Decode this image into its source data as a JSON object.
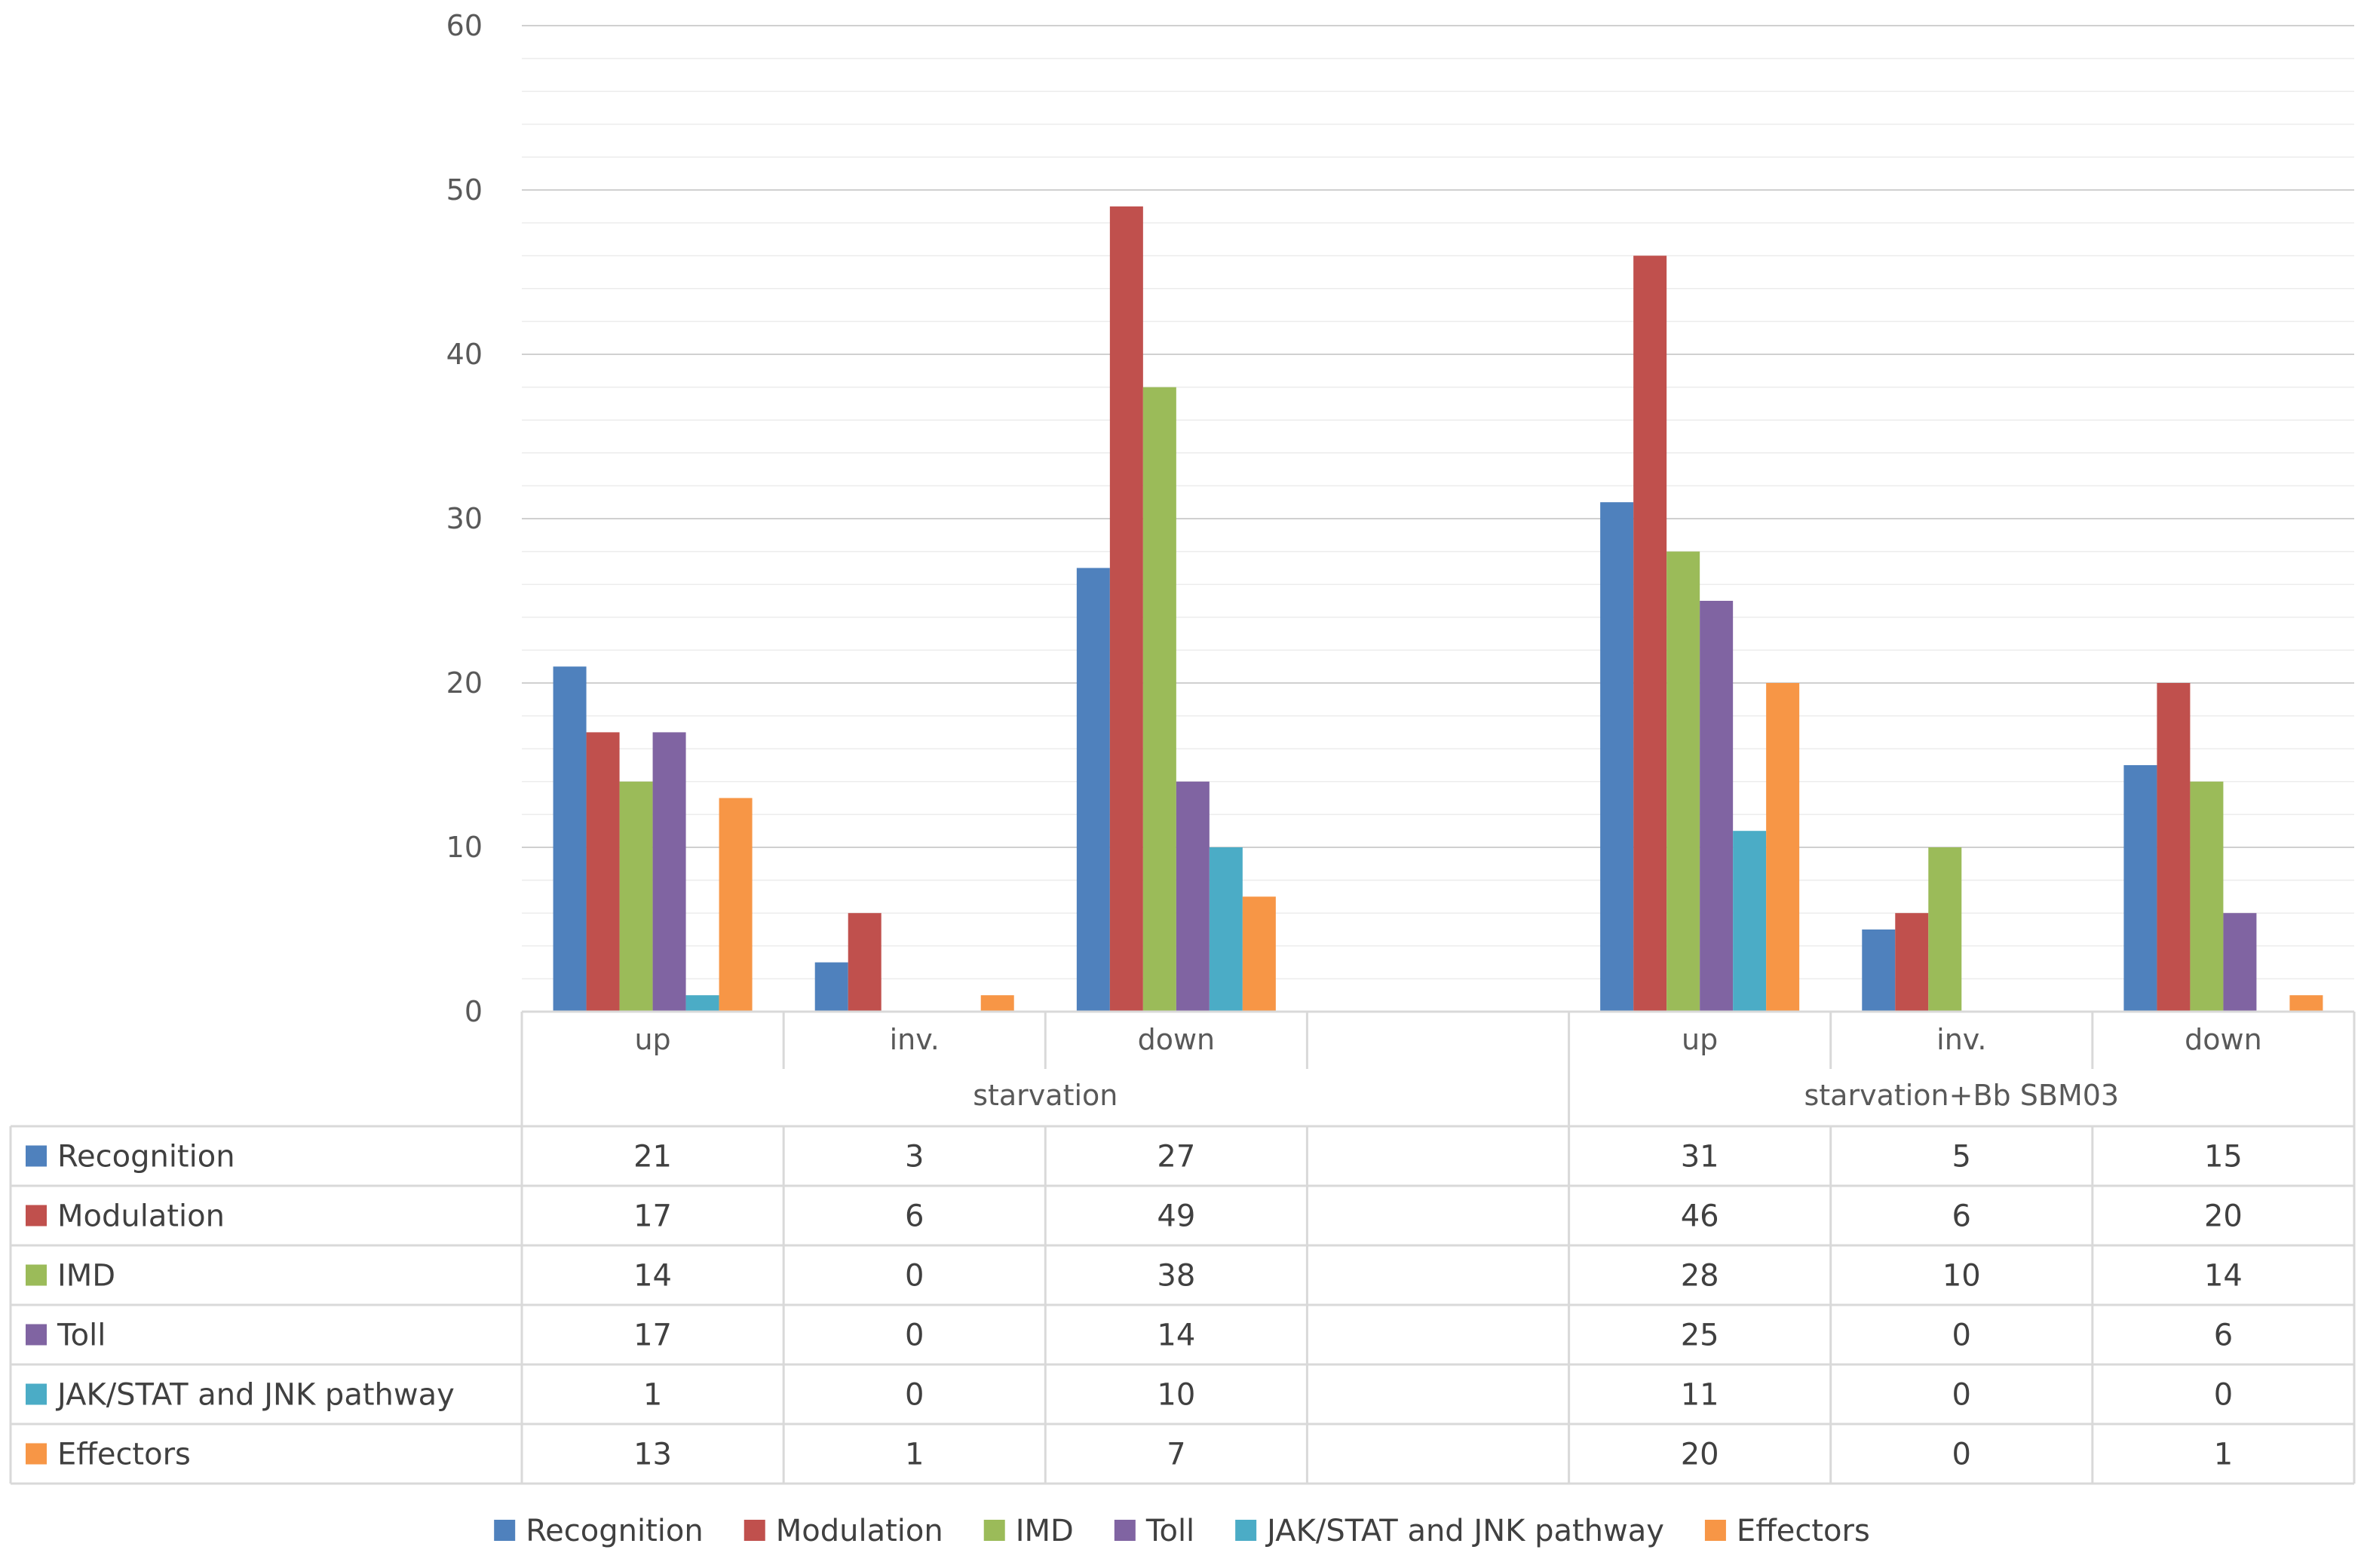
{
  "chart_data": {
    "type": "bar",
    "title": "",
    "ylim": [
      0,
      60
    ],
    "yticks": [
      "0",
      "10",
      "20",
      "30",
      "40",
      "50",
      "60"
    ],
    "categories": [
      "up",
      "inv.",
      "down",
      "",
      "up",
      "inv.",
      "down"
    ],
    "groups": [
      {
        "label": "starvation",
        "span": 4
      },
      {
        "label": "starvation+Bb SBM03",
        "span": 3
      }
    ],
    "series": [
      {
        "name": "Recognition",
        "color": "#4F81BD",
        "values": [
          21,
          3,
          27,
          null,
          31,
          5,
          15
        ]
      },
      {
        "name": "Modulation",
        "color": "#C0504D",
        "values": [
          17,
          6,
          49,
          null,
          46,
          6,
          20
        ]
      },
      {
        "name": "IMD",
        "color": "#9BBB59",
        "values": [
          14,
          0,
          38,
          null,
          28,
          10,
          14
        ]
      },
      {
        "name": "Toll",
        "color": "#8064A2",
        "values": [
          17,
          0,
          14,
          null,
          25,
          0,
          6
        ]
      },
      {
        "name": "JAK/STAT and JNK pathway",
        "color": "#4BACC6",
        "values": [
          1,
          0,
          10,
          null,
          11,
          0,
          0
        ]
      },
      {
        "name": "Effectors",
        "color": "#F79646",
        "values": [
          13,
          1,
          7,
          null,
          20,
          0,
          1
        ]
      }
    ],
    "table": {
      "rows": [
        {
          "label": "Recognition",
          "cells": [
            "21",
            "3",
            "27",
            "",
            "31",
            "5",
            "15"
          ]
        },
        {
          "label": "Modulation",
          "cells": [
            "17",
            "6",
            "49",
            "",
            "46",
            "6",
            "20"
          ]
        },
        {
          "label": "IMD",
          "cells": [
            "14",
            "0",
            "38",
            "",
            "28",
            "10",
            "14"
          ]
        },
        {
          "label": "Toll",
          "cells": [
            "17",
            "0",
            "14",
            "",
            "25",
            "0",
            "6"
          ]
        },
        {
          "label": "JAK/STAT and JNK pathway",
          "cells": [
            "1",
            "0",
            "10",
            "",
            "11",
            "0",
            "0"
          ]
        },
        {
          "label": "Effectors",
          "cells": [
            "13",
            "1",
            "7",
            "",
            "20",
            "0",
            "1"
          ]
        }
      ]
    },
    "legend": [
      "Recognition",
      "Modulation",
      "IMD",
      "Toll",
      "JAK/STAT and JNK pathway",
      "Effectors"
    ],
    "legend_position": "bottom",
    "grid": true
  }
}
